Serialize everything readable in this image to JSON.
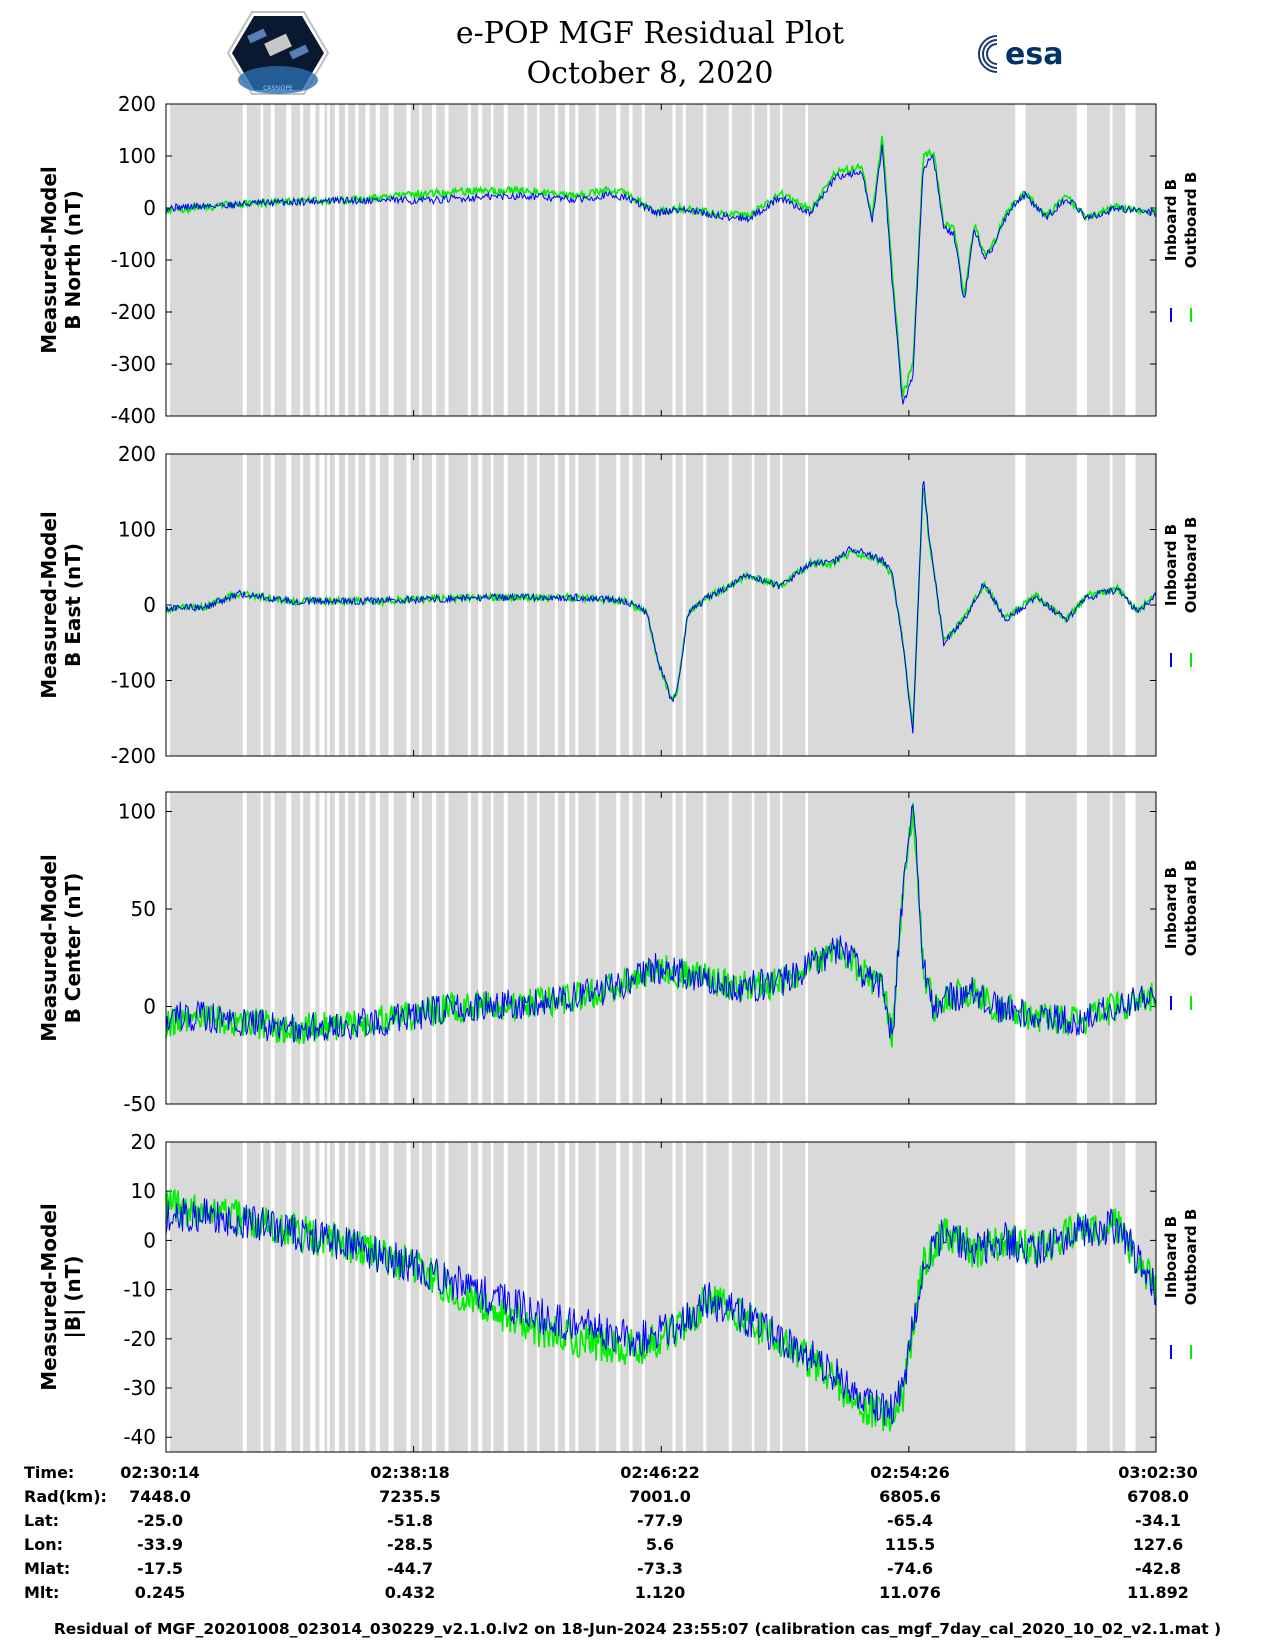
{
  "header": {
    "title_line1": "e-POP MGF Residual Plot",
    "title_line2": "October 8, 2020",
    "logo_left": "CASSIOPE",
    "logo_right": "esa"
  },
  "colors": {
    "inboard": "#0000ff",
    "outboard": "#00ee00",
    "gap_shading": "#d9d9d9",
    "background": "#ffffff"
  },
  "legend": {
    "inboard": "Inboard B",
    "outboard": "Outboard B"
  },
  "chart_data": [
    {
      "type": "line",
      "ylabel_line1": "Measured-Model",
      "ylabel_line2": "B North (nT)",
      "ylim": [
        -400,
        200
      ],
      "yticks": [
        "200",
        "100",
        "0",
        "-100",
        "-200",
        "-300",
        "-400"
      ],
      "xlim": [
        0,
        1935
      ],
      "x_unit": "seconds after 02:30:14",
      "series": [
        {
          "name": "Inboard B",
          "x": [
            0,
            60,
            120,
            200,
            300,
            400,
            500,
            600,
            700,
            800,
            860,
            900,
            960,
            1000,
            1080,
            1140,
            1200,
            1260,
            1310,
            1360,
            1380,
            1400,
            1420,
            1440,
            1460,
            1480,
            1500,
            1520,
            1540,
            1560,
            1580,
            1600,
            1620,
            1640,
            1660,
            1680,
            1720,
            1760,
            1800,
            1860,
            1935
          ],
          "y": [
            0,
            3,
            6,
            10,
            14,
            15,
            14,
            20,
            24,
            16,
            25,
            20,
            -10,
            -2,
            -15,
            -20,
            20,
            -10,
            60,
            70,
            -30,
            120,
            -150,
            -380,
            -320,
            80,
            100,
            -40,
            -50,
            -180,
            -40,
            -95,
            -70,
            -20,
            10,
            25,
            -20,
            20,
            -20,
            0,
            -10
          ]
        },
        {
          "name": "Outboard B",
          "x": [
            0,
            60,
            120,
            200,
            300,
            400,
            500,
            600,
            700,
            800,
            860,
            900,
            960,
            1000,
            1080,
            1140,
            1200,
            1260,
            1310,
            1360,
            1380,
            1400,
            1420,
            1440,
            1460,
            1480,
            1500,
            1520,
            1540,
            1560,
            1580,
            1600,
            1620,
            1640,
            1660,
            1680,
            1720,
            1760,
            1800,
            1860,
            1935
          ],
          "y": [
            -5,
            0,
            6,
            10,
            14,
            18,
            28,
            32,
            35,
            22,
            35,
            28,
            -8,
            0,
            -12,
            -15,
            28,
            -4,
            70,
            80,
            -20,
            140,
            -130,
            -360,
            -300,
            100,
            110,
            -30,
            -40,
            -170,
            -30,
            -90,
            -65,
            -15,
            15,
            28,
            -15,
            22,
            -18,
            2,
            -8
          ]
        }
      ],
      "x_extent_outboard_min": [
        0,
        1000
      ]
    },
    {
      "type": "line",
      "ylabel_line1": "Measured-Model",
      "ylabel_line2": "B East (nT)",
      "ylim": [
        -200,
        200
      ],
      "yticks": [
        "200",
        "100",
        "0",
        "-100",
        "-200"
      ],
      "xlim": [
        0,
        1935
      ],
      "series": [
        {
          "name": "Inboard B",
          "x": [
            0,
            80,
            140,
            250,
            400,
            600,
            800,
            900,
            940,
            960,
            990,
            1000,
            1020,
            1060,
            1140,
            1200,
            1260,
            1300,
            1340,
            1400,
            1420,
            1440,
            1460,
            1480,
            1490,
            1520,
            1560,
            1600,
            1640,
            1700,
            1760,
            1800,
            1860,
            1900,
            1935
          ],
          "y": [
            -5,
            -2,
            15,
            5,
            5,
            10,
            10,
            5,
            -10,
            -70,
            -130,
            -110,
            -10,
            10,
            40,
            25,
            55,
            55,
            75,
            60,
            40,
            -50,
            -170,
            170,
            100,
            -50,
            -20,
            30,
            -20,
            10,
            -20,
            10,
            20,
            -10,
            15
          ]
        },
        {
          "name": "Outboard B",
          "x": [
            0,
            80,
            140,
            250,
            400,
            600,
            800,
            900,
            940,
            960,
            990,
            1000,
            1020,
            1060,
            1140,
            1200,
            1260,
            1300,
            1340,
            1400,
            1420,
            1440,
            1460,
            1480,
            1490,
            1520,
            1560,
            1600,
            1640,
            1700,
            1760,
            1800,
            1860,
            1900,
            1935
          ],
          "y": [
            -5,
            -2,
            15,
            5,
            5,
            10,
            10,
            5,
            -10,
            -70,
            -130,
            -110,
            -10,
            10,
            40,
            25,
            55,
            55,
            70,
            58,
            38,
            -48,
            -165,
            165,
            95,
            -48,
            -18,
            28,
            -18,
            12,
            -18,
            12,
            22,
            -8,
            16
          ]
        }
      ]
    },
    {
      "type": "line",
      "ylabel_line1": "Measured-Model",
      "ylabel_line2": "B Center (nT)",
      "ylim": [
        -50,
        110
      ],
      "yticks": [
        "100",
        "50",
        "0",
        "-50"
      ],
      "xlim": [
        0,
        1935
      ],
      "series": [
        {
          "name": "Inboard B",
          "x": [
            0,
            80,
            160,
            240,
            320,
            400,
            480,
            560,
            640,
            720,
            800,
            880,
            960,
            1040,
            1120,
            1200,
            1280,
            1320,
            1360,
            1400,
            1420,
            1440,
            1460,
            1480,
            1500,
            1540,
            1580,
            1620,
            1700,
            1780,
            1860,
            1935
          ],
          "y": [
            -5,
            -5,
            -8,
            -12,
            -10,
            -8,
            -5,
            0,
            0,
            2,
            5,
            10,
            20,
            15,
            10,
            12,
            25,
            30,
            18,
            10,
            -15,
            60,
            105,
            20,
            0,
            5,
            8,
            0,
            -5,
            -8,
            0,
            5
          ]
        },
        {
          "name": "Outboard B",
          "x": [
            0,
            80,
            160,
            240,
            320,
            400,
            480,
            560,
            640,
            720,
            800,
            880,
            960,
            1040,
            1120,
            1200,
            1280,
            1320,
            1360,
            1400,
            1420,
            1440,
            1460,
            1480,
            1500,
            1540,
            1580,
            1620,
            1700,
            1780,
            1860,
            1935
          ],
          "y": [
            -8,
            -6,
            -8,
            -12,
            -10,
            -8,
            -5,
            0,
            0,
            2,
            5,
            10,
            20,
            15,
            10,
            12,
            25,
            30,
            18,
            10,
            -15,
            60,
            100,
            20,
            0,
            5,
            8,
            0,
            -5,
            -8,
            0,
            5
          ]
        }
      ]
    },
    {
      "type": "line",
      "ylabel_line1": "Measured-Model",
      "ylabel_line2": "|B| (nT)",
      "ylim": [
        -43,
        20
      ],
      "yticks": [
        "20",
        "10",
        "0",
        "-10",
        "-20",
        "-30",
        "-40"
      ],
      "xlim": [
        0,
        1935
      ],
      "series": [
        {
          "name": "Inboard B",
          "x": [
            0,
            80,
            200,
            320,
            480,
            600,
            720,
            800,
            920,
            1000,
            1060,
            1120,
            1200,
            1280,
            1340,
            1380,
            1420,
            1440,
            1480,
            1520,
            1580,
            1640,
            1700,
            1780,
            1860,
            1935
          ],
          "y": [
            5,
            5,
            3,
            0,
            -5,
            -10,
            -15,
            -17,
            -20,
            -18,
            -12,
            -15,
            -20,
            -25,
            -30,
            -33,
            -35,
            -30,
            -5,
            2,
            -2,
            0,
            -2,
            2,
            3,
            -10
          ]
        },
        {
          "name": "Outboard B",
          "x": [
            0,
            80,
            200,
            320,
            480,
            600,
            720,
            800,
            920,
            1000,
            1060,
            1120,
            1200,
            1280,
            1340,
            1380,
            1420,
            1440,
            1480,
            1520,
            1580,
            1640,
            1700,
            1780,
            1860,
            1935
          ],
          "y": [
            7,
            6,
            3,
            0,
            -5,
            -12,
            -18,
            -20,
            -22,
            -18,
            -12,
            -15,
            -20,
            -26,
            -32,
            -35,
            -36,
            -32,
            -5,
            2,
            -2,
            0,
            -2,
            2,
            3,
            -10
          ]
        }
      ]
    }
  ],
  "gaps": [
    [
      0,
      0
    ],
    [
      150,
      150
    ],
    [
      185,
      190
    ],
    [
      205,
      212
    ],
    [
      235,
      245
    ],
    [
      262,
      268
    ],
    [
      282,
      292
    ],
    [
      300,
      310
    ],
    [
      315,
      320
    ],
    [
      330,
      338
    ],
    [
      350,
      356
    ],
    [
      370,
      376
    ],
    [
      390,
      398
    ],
    [
      410,
      418
    ],
    [
      435,
      445
    ],
    [
      470,
      478
    ],
    [
      495,
      500
    ],
    [
      520,
      528
    ],
    [
      545,
      552
    ],
    [
      590,
      596
    ],
    [
      610,
      618
    ],
    [
      635,
      640
    ],
    [
      660,
      668
    ],
    [
      700,
      706
    ],
    [
      725,
      730
    ],
    [
      760,
      766
    ],
    [
      780,
      788
    ],
    [
      800,
      806
    ],
    [
      840,
      846
    ],
    [
      880,
      888
    ],
    [
      905,
      912
    ],
    [
      930,
      936
    ],
    [
      990,
      996
    ],
    [
      1010,
      1016
    ],
    [
      1050,
      1056
    ],
    [
      1100,
      1106
    ],
    [
      1145,
      1150
    ],
    [
      1175,
      1180
    ],
    [
      1200,
      1205
    ],
    [
      1250,
      1255
    ],
    [
      1660,
      1680
    ],
    [
      1780,
      1800
    ],
    [
      1845,
      1850
    ],
    [
      1875,
      1895
    ]
  ],
  "info": {
    "labels": [
      "Time:",
      "Rad(km):",
      "Lat:",
      "Lon:",
      "Mlat:",
      "Mlt:"
    ],
    "columns": [
      [
        "02:30:14",
        "7448.0",
        "-25.0",
        "-33.9",
        "-17.5",
        "0.245"
      ],
      [
        "02:38:18",
        "7235.5",
        "-51.8",
        "-28.5",
        "-44.7",
        "0.432"
      ],
      [
        "02:46:22",
        "7001.0",
        "-77.9",
        "5.6",
        "-73.3",
        "1.120"
      ],
      [
        "02:54:26",
        "6805.6",
        "-65.4",
        "115.5",
        "-74.6",
        "11.076"
      ],
      [
        "03:02:30",
        "6708.0",
        "-34.1",
        "127.6",
        "-42.8",
        "11.892"
      ]
    ]
  },
  "footer": "Residual of MGF_20201008_023014_030229_v2.1.0.lv2 on 18-Jun-2024 23:55:07 (calibration cas_mgf_7day_cal_2020_10_02_v2.1.mat )"
}
